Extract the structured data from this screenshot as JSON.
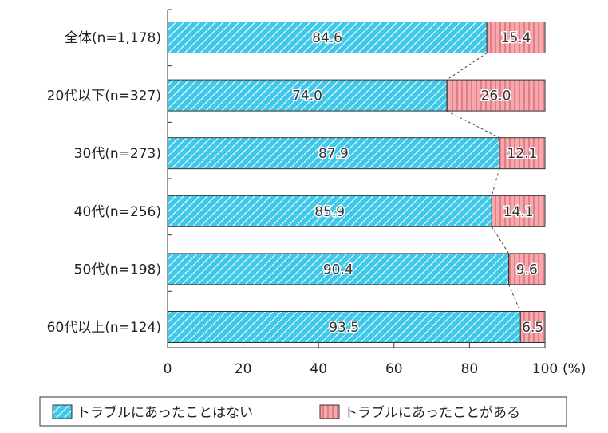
{
  "chart_data": {
    "type": "bar",
    "orientation": "horizontal",
    "stacked": true,
    "categories": [
      "全体(n=1,178)",
      "20代以下(n=327)",
      "30代(n=273)",
      "40代(n=256)",
      "50代(n=198)",
      "60代以上(n=124)"
    ],
    "series": [
      {
        "name": "トラブルにあったことはない",
        "values": [
          84.6,
          74.0,
          87.9,
          85.9,
          90.4,
          93.5
        ],
        "color": "#3fc8e8"
      },
      {
        "name": "トラブルにあったことがある",
        "values": [
          15.4,
          26.0,
          12.1,
          14.1,
          9.6,
          6.5
        ],
        "color": "#f5a8ad"
      }
    ],
    "value_labels": [
      [
        "84.6",
        "74.0",
        "87.9",
        "85.9",
        "90.4",
        "93.5"
      ],
      [
        "15.4",
        "26.0",
        "12.1",
        "14.1",
        "9.6",
        "6.5"
      ]
    ],
    "xlim": [
      0,
      100
    ],
    "xticks": [
      "0",
      "20",
      "40",
      "60",
      "80",
      "100"
    ],
    "xunit": "(%)",
    "connector_lines": true,
    "legend_position": "bottom",
    "grid": false
  }
}
